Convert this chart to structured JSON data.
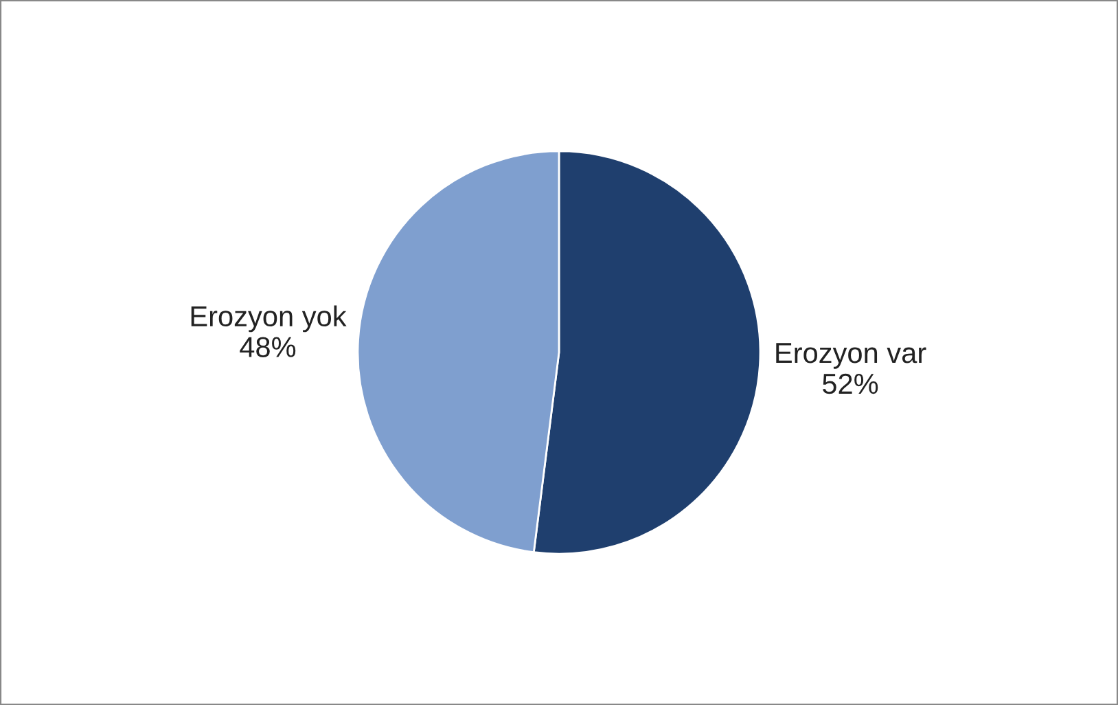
{
  "chart_data": {
    "type": "pie",
    "categories": [
      "Erozyon var",
      "Erozyon yok"
    ],
    "values": [
      52,
      48
    ],
    "colors": [
      "#1f3f6e",
      "#7f9fcf"
    ],
    "value_labels": [
      "52%",
      "48%"
    ],
    "legend": false
  }
}
